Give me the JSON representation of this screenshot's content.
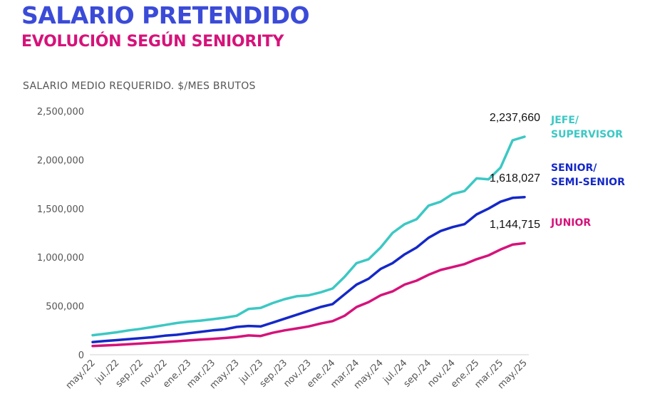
{
  "header": {
    "title": "SALARIO PRETENDIDO",
    "subtitle": "EVOLUCIÓN SEGÚN SENIORITY",
    "title_color": "#3B4BD8",
    "subtitle_color": "#D6127A"
  },
  "chart_data": {
    "type": "line",
    "ylabel": "SALARIO MEDIO REQUERIDO. $/MES BRUTOS",
    "ylim": [
      0,
      2500000
    ],
    "yticks": [
      "2,500,000",
      "2,000,000",
      "1,500,000",
      "1,000,000",
      "500,000",
      "0"
    ],
    "ytick_values": [
      2500000,
      2000000,
      1500000,
      1000000,
      500000,
      0
    ],
    "x": [
      "may./22",
      "jun./22",
      "jul./22",
      "ago./22",
      "sep./22",
      "oct./22",
      "nov./22",
      "dic./22",
      "ene./23",
      "feb./23",
      "mar./23",
      "abr./23",
      "may./23",
      "jun./23",
      "jul./23",
      "ago./23",
      "sep./23",
      "oct./23",
      "nov./23",
      "dic./23",
      "ene./24",
      "feb./24",
      "mar./24",
      "abr./24",
      "may./24",
      "jun./24",
      "jul./24",
      "ago./24",
      "sep./24",
      "oct./24",
      "nov./24",
      "dic./24",
      "ene./25",
      "feb./25",
      "mar./25",
      "abr./25",
      "may./25"
    ],
    "xticks": [
      "may./22",
      "jul./22",
      "sep./22",
      "nov./22",
      "ene./23",
      "mar./23",
      "may./23",
      "jul./23",
      "sep./23",
      "nov./23",
      "ene./24",
      "mar./24",
      "may./24",
      "jul./24",
      "sep./24",
      "nov./24",
      "ene./25",
      "mar./25",
      "may./25"
    ],
    "grid": false,
    "legend_position": "right",
    "series": [
      {
        "name_lines": [
          "JEFE/",
          "SUPERVISOR"
        ],
        "color": "#3CC8C4",
        "end_label": "2,237,660",
        "values": [
          200000,
          215000,
          230000,
          250000,
          265000,
          285000,
          305000,
          325000,
          340000,
          350000,
          365000,
          380000,
          400000,
          470000,
          480000,
          530000,
          570000,
          600000,
          610000,
          640000,
          680000,
          800000,
          940000,
          980000,
          1100000,
          1250000,
          1340000,
          1390000,
          1530000,
          1570000,
          1650000,
          1680000,
          1810000,
          1800000,
          1920000,
          2200000,
          2237660
        ]
      },
      {
        "name_lines": [
          "SENIOR/",
          "SEMI-SENIOR"
        ],
        "color": "#1428C8",
        "end_label": "1,618,027",
        "values": [
          130000,
          140000,
          150000,
          160000,
          170000,
          180000,
          195000,
          205000,
          220000,
          235000,
          250000,
          260000,
          285000,
          295000,
          290000,
          330000,
          370000,
          410000,
          450000,
          490000,
          520000,
          620000,
          720000,
          780000,
          880000,
          940000,
          1030000,
          1100000,
          1200000,
          1270000,
          1310000,
          1340000,
          1440000,
          1500000,
          1570000,
          1610000,
          1618027
        ]
      },
      {
        "name_lines": [
          "JUNIOR"
        ],
        "color": "#D6127A",
        "end_label": "1,144,715",
        "values": [
          90000,
          95000,
          100000,
          108000,
          115000,
          122000,
          130000,
          138000,
          147000,
          155000,
          163000,
          172000,
          182000,
          198000,
          192000,
          225000,
          250000,
          270000,
          290000,
          320000,
          345000,
          400000,
          490000,
          540000,
          610000,
          650000,
          720000,
          760000,
          820000,
          870000,
          900000,
          930000,
          980000,
          1020000,
          1080000,
          1130000,
          1144715
        ]
      }
    ]
  }
}
